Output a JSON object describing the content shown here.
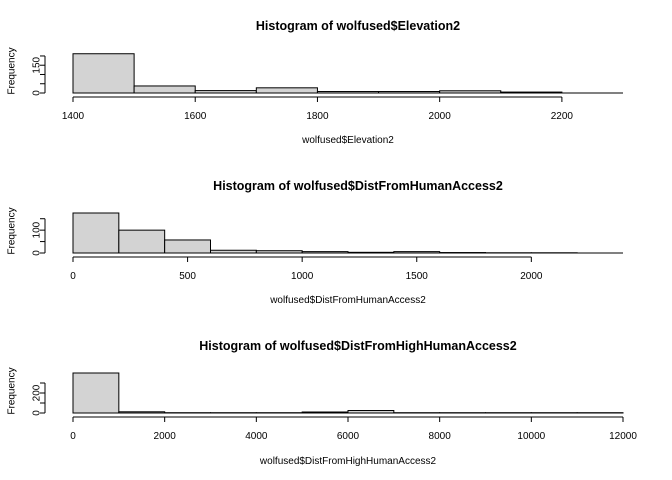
{
  "colors": {
    "bar_fill": "#d3d3d3",
    "bar_stroke": "#000000",
    "background": "#ffffff"
  },
  "chart_data": [
    {
      "type": "bar",
      "title": "Histogram of wolfused$Elevation2",
      "xlabel": "wolfused$Elevation2",
      "ylabel": "Frequency",
      "xlim": [
        1400,
        2300
      ],
      "ylim": [
        0,
        216
      ],
      "x_ticks": [
        1400,
        1600,
        1800,
        2000,
        2200
      ],
      "y_ticks": [
        0,
        150
      ],
      "y_minor_ticks": [
        50,
        100,
        200
      ],
      "bins": [
        [
          1400,
          1500
        ],
        [
          1500,
          1600
        ],
        [
          1600,
          1700
        ],
        [
          1700,
          1800
        ],
        [
          1800,
          1900
        ],
        [
          1900,
          2000
        ],
        [
          2000,
          2100
        ],
        [
          2100,
          2200
        ]
      ],
      "values": [
        212,
        38,
        13,
        28,
        8,
        8,
        12,
        5
      ]
    },
    {
      "type": "bar",
      "title": "Histogram of wolfused$DistFromHumanAccess2",
      "xlabel": "wolfused$DistFromHumanAccess2",
      "ylabel": "Frequency",
      "xlim": [
        0,
        2400
      ],
      "ylim": [
        0,
        175
      ],
      "x_ticks": [
        0,
        500,
        1000,
        1500,
        2000
      ],
      "y_ticks": [
        0,
        100
      ],
      "y_minor_ticks": [
        50,
        150
      ],
      "bins": [
        [
          0,
          200
        ],
        [
          200,
          400
        ],
        [
          400,
          600
        ],
        [
          600,
          800
        ],
        [
          800,
          1000
        ],
        [
          1000,
          1200
        ],
        [
          1200,
          1400
        ],
        [
          1400,
          1600
        ],
        [
          1600,
          1800
        ],
        [
          1800,
          2000
        ],
        [
          2000,
          2200
        ]
      ],
      "values": [
        175,
        100,
        57,
        12,
        10,
        6,
        3,
        6,
        2,
        1,
        1
      ]
    },
    {
      "type": "bar",
      "title": "Histogram of wolfused$DistFromHighHumanAccess2",
      "xlabel": "wolfused$DistFromHighHumanAccess2",
      "ylabel": "Frequency",
      "xlim": [
        0,
        12000
      ],
      "ylim": [
        0,
        400
      ],
      "x_ticks": [
        0,
        2000,
        4000,
        6000,
        8000,
        10000,
        12000
      ],
      "y_ticks": [
        0,
        200
      ],
      "y_minor_ticks": [
        100,
        300
      ],
      "bins": [
        [
          0,
          1000
        ],
        [
          1000,
          2000
        ],
        [
          2000,
          3000
        ],
        [
          3000,
          4000
        ],
        [
          4000,
          5000
        ],
        [
          5000,
          6000
        ],
        [
          6000,
          7000
        ],
        [
          7000,
          8000
        ],
        [
          8000,
          9000
        ],
        [
          9000,
          10000
        ],
        [
          10000,
          11000
        ],
        [
          11000,
          12000
        ]
      ],
      "values": [
        400,
        12,
        3,
        3,
        3,
        10,
        25,
        3,
        3,
        3,
        3,
        3
      ]
    }
  ]
}
